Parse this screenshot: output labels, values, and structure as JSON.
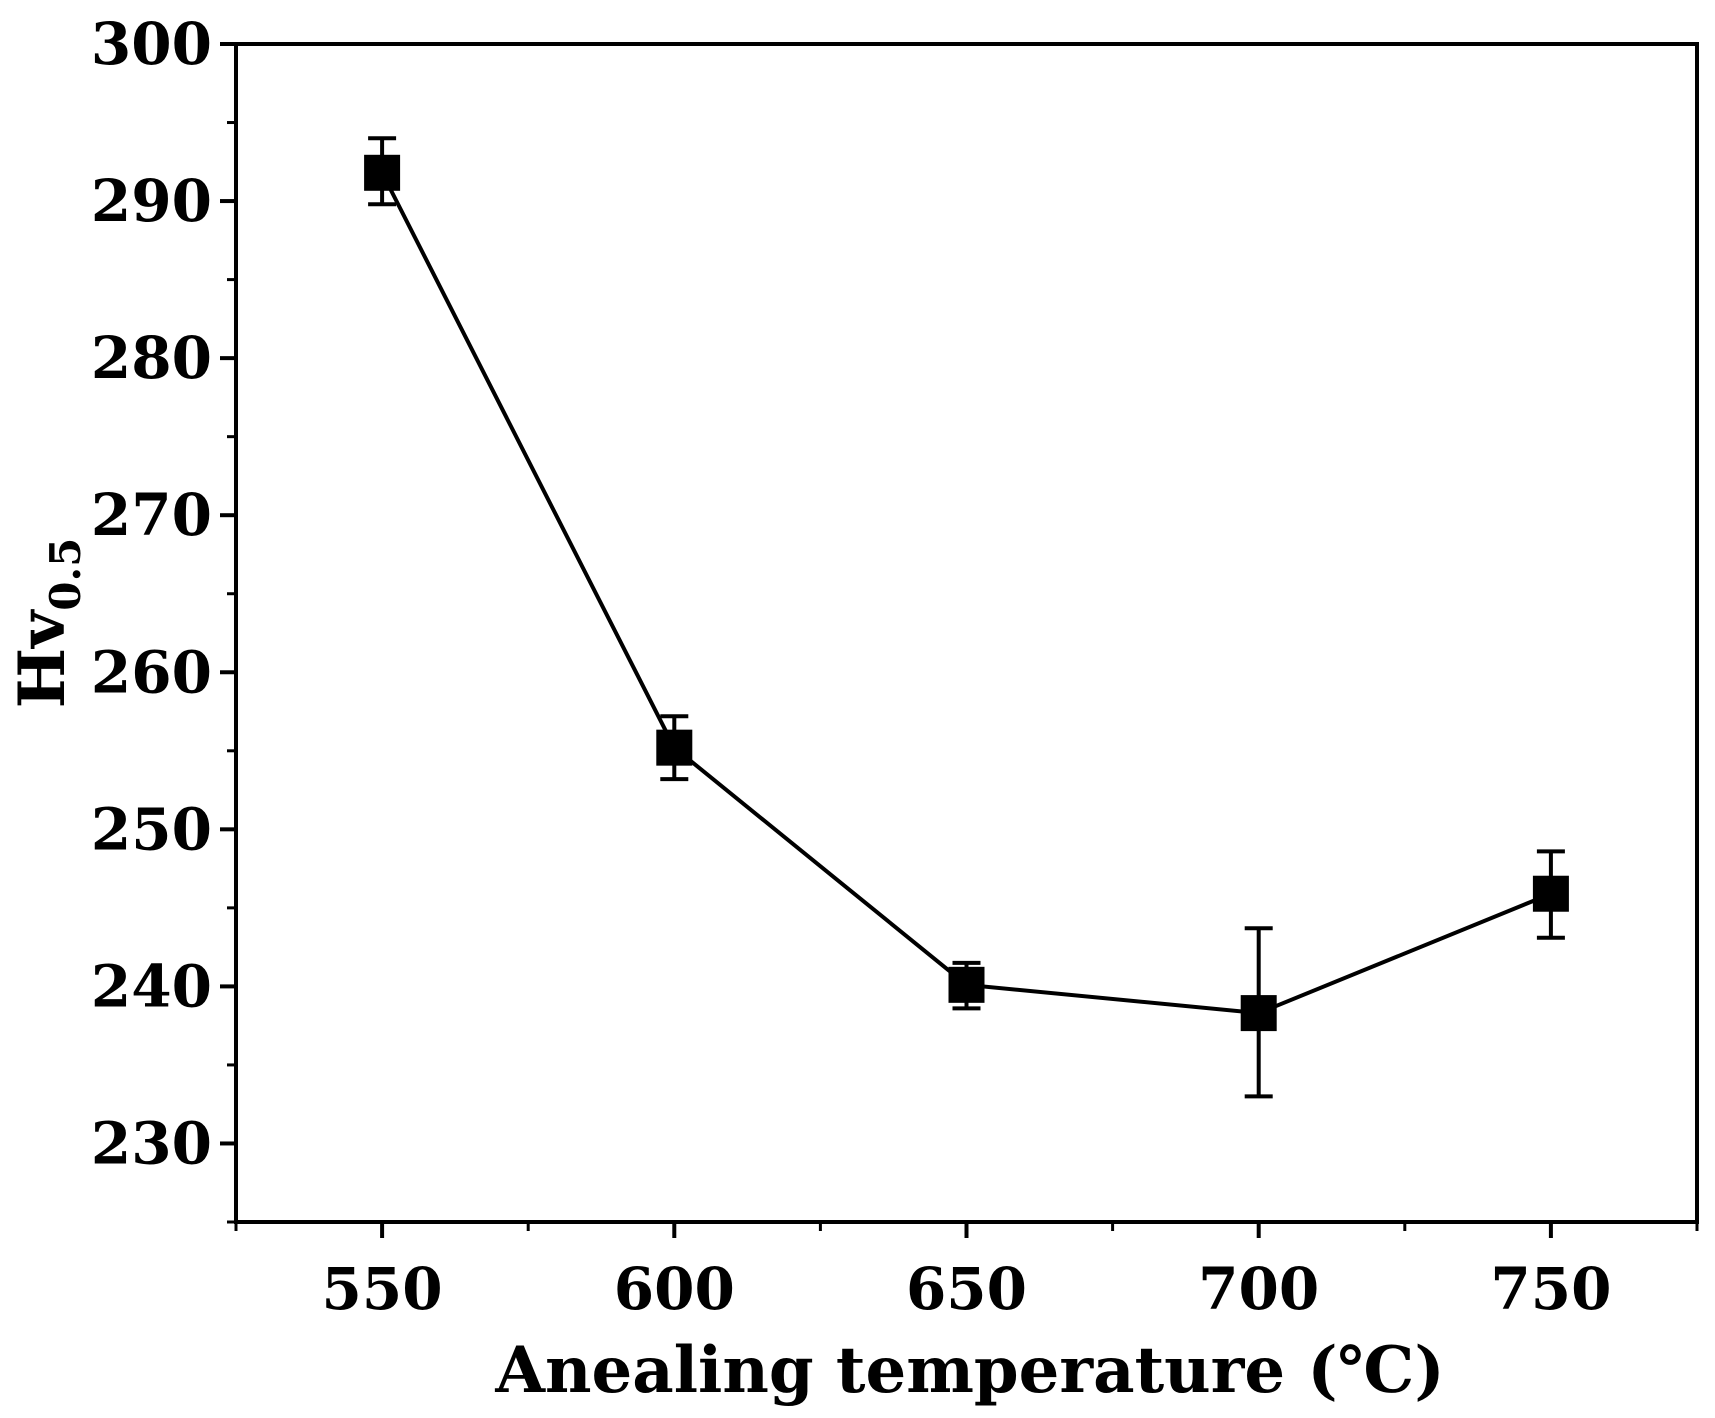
{
  "chart_data": {
    "type": "line",
    "title": "",
    "xlabel": "Anealing temperature (℃)",
    "ylabel_main": "Hv",
    "ylabel_sub": "0.5",
    "xlim": [
      525,
      775
    ],
    "ylim": [
      225,
      300
    ],
    "x_ticks": [
      550,
      600,
      650,
      700,
      750
    ],
    "y_ticks": [
      230,
      240,
      250,
      260,
      270,
      280,
      290,
      300
    ],
    "grid": false,
    "series": [
      {
        "name": "Hv0.5",
        "marker": "square",
        "color": "#000000",
        "points": [
          {
            "x": 550,
            "y": 291.8,
            "err_low": 289.8,
            "err_high": 294.0
          },
          {
            "x": 600,
            "y": 255.2,
            "err_low": 253.2,
            "err_high": 257.2
          },
          {
            "x": 650,
            "y": 240.1,
            "err_low": 238.6,
            "err_high": 241.5
          },
          {
            "x": 700,
            "y": 238.3,
            "err_low": 233.0,
            "err_high": 243.7
          },
          {
            "x": 750,
            "y": 245.9,
            "err_low": 243.1,
            "err_high": 248.6
          }
        ]
      }
    ]
  }
}
